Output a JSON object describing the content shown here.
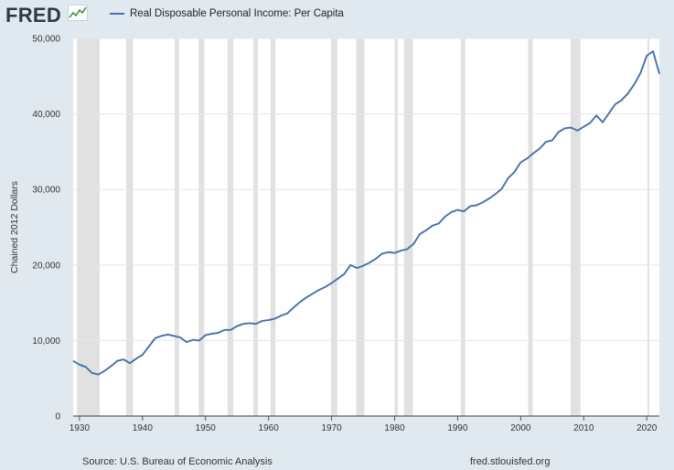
{
  "header": {
    "logo_text": "FRED",
    "logo_icon": "line-chart-icon",
    "legend_label": "Real Disposable Personal Income: Per Capita"
  },
  "footer": {
    "source": "Source: U.S. Bureau of Economic Analysis",
    "site": "fred.stlouisfed.org"
  },
  "colors": {
    "background": "#e1e9f0",
    "plot_background": "#ffffff",
    "series": "#4572a7",
    "recession": "#e1e1e1",
    "grid": "#e6e6e6"
  },
  "chart_data": {
    "type": "line",
    "title": "",
    "xlabel": "",
    "ylabel": "Chained 2012 Dollars",
    "xlim": [
      1929,
      2022
    ],
    "ylim": [
      0,
      50000
    ],
    "yticks": [
      0,
      10000,
      20000,
      30000,
      40000,
      50000
    ],
    "ytick_labels": [
      "0",
      "10,000",
      "20,000",
      "30,000",
      "40,000",
      "50,000"
    ],
    "xticks": [
      1930,
      1940,
      1950,
      1960,
      1970,
      1980,
      1990,
      2000,
      2010,
      2020
    ],
    "xtick_labels": [
      "1930",
      "1940",
      "1950",
      "1960",
      "1970",
      "1980",
      "1990",
      "2000",
      "2010",
      "2020"
    ],
    "grid": true,
    "legend_position": "top-left",
    "recession_shading": [
      [
        1929.6,
        1933.2
      ],
      [
        1937.4,
        1938.5
      ],
      [
        1945.1,
        1945.8
      ],
      [
        1948.9,
        1949.8
      ],
      [
        1953.5,
        1954.4
      ],
      [
        1957.6,
        1958.3
      ],
      [
        1960.3,
        1961.1
      ],
      [
        1969.9,
        1970.9
      ],
      [
        1973.9,
        1975.2
      ],
      [
        1980.0,
        1980.5
      ],
      [
        1981.5,
        1982.9
      ],
      [
        1990.5,
        1991.2
      ],
      [
        2001.2,
        2001.9
      ],
      [
        2007.9,
        2009.5
      ],
      [
        2020.1,
        2020.4
      ]
    ],
    "series": [
      {
        "name": "Real Disposable Personal Income: Per Capita",
        "x": [
          1929,
          1930,
          1931,
          1932,
          1933,
          1934,
          1935,
          1936,
          1937,
          1938,
          1939,
          1940,
          1941,
          1942,
          1943,
          1944,
          1945,
          1946,
          1947,
          1948,
          1949,
          1950,
          1951,
          1952,
          1953,
          1954,
          1955,
          1956,
          1957,
          1958,
          1959,
          1960,
          1961,
          1962,
          1963,
          1964,
          1965,
          1966,
          1967,
          1968,
          1969,
          1970,
          1971,
          1972,
          1973,
          1974,
          1975,
          1976,
          1977,
          1978,
          1979,
          1980,
          1981,
          1982,
          1983,
          1984,
          1985,
          1986,
          1987,
          1988,
          1989,
          1990,
          1991,
          1992,
          1993,
          1994,
          1995,
          1996,
          1997,
          1998,
          1999,
          2000,
          2001,
          2002,
          2003,
          2004,
          2005,
          2006,
          2007,
          2008,
          2009,
          2010,
          2011,
          2012,
          2013,
          2014,
          2015,
          2016,
          2017,
          2018,
          2019,
          2020,
          2021,
          2022
        ],
        "values": [
          7300,
          6800,
          6500,
          5700,
          5500,
          6000,
          6600,
          7300,
          7500,
          7000,
          7600,
          8100,
          9200,
          10300,
          10600,
          10800,
          10600,
          10400,
          9800,
          10100,
          10000,
          10700,
          10900,
          11000,
          11400,
          11400,
          11900,
          12200,
          12300,
          12200,
          12600,
          12700,
          12900,
          13300,
          13600,
          14400,
          15100,
          15700,
          16200,
          16700,
          17100,
          17600,
          18200,
          18800,
          20000,
          19600,
          19900,
          20300,
          20800,
          21500,
          21700,
          21600,
          21900,
          22100,
          22800,
          24100,
          24600,
          25200,
          25500,
          26400,
          27000,
          27300,
          27100,
          27800,
          27900,
          28300,
          28800,
          29400,
          30100,
          31500,
          32300,
          33600,
          34100,
          34800,
          35400,
          36300,
          36500,
          37600,
          38100,
          38200,
          37800,
          38300,
          38800,
          39800,
          38900,
          40100,
          41300,
          41800,
          42700,
          43900,
          45400,
          47700,
          48300,
          45300
        ]
      }
    ]
  }
}
